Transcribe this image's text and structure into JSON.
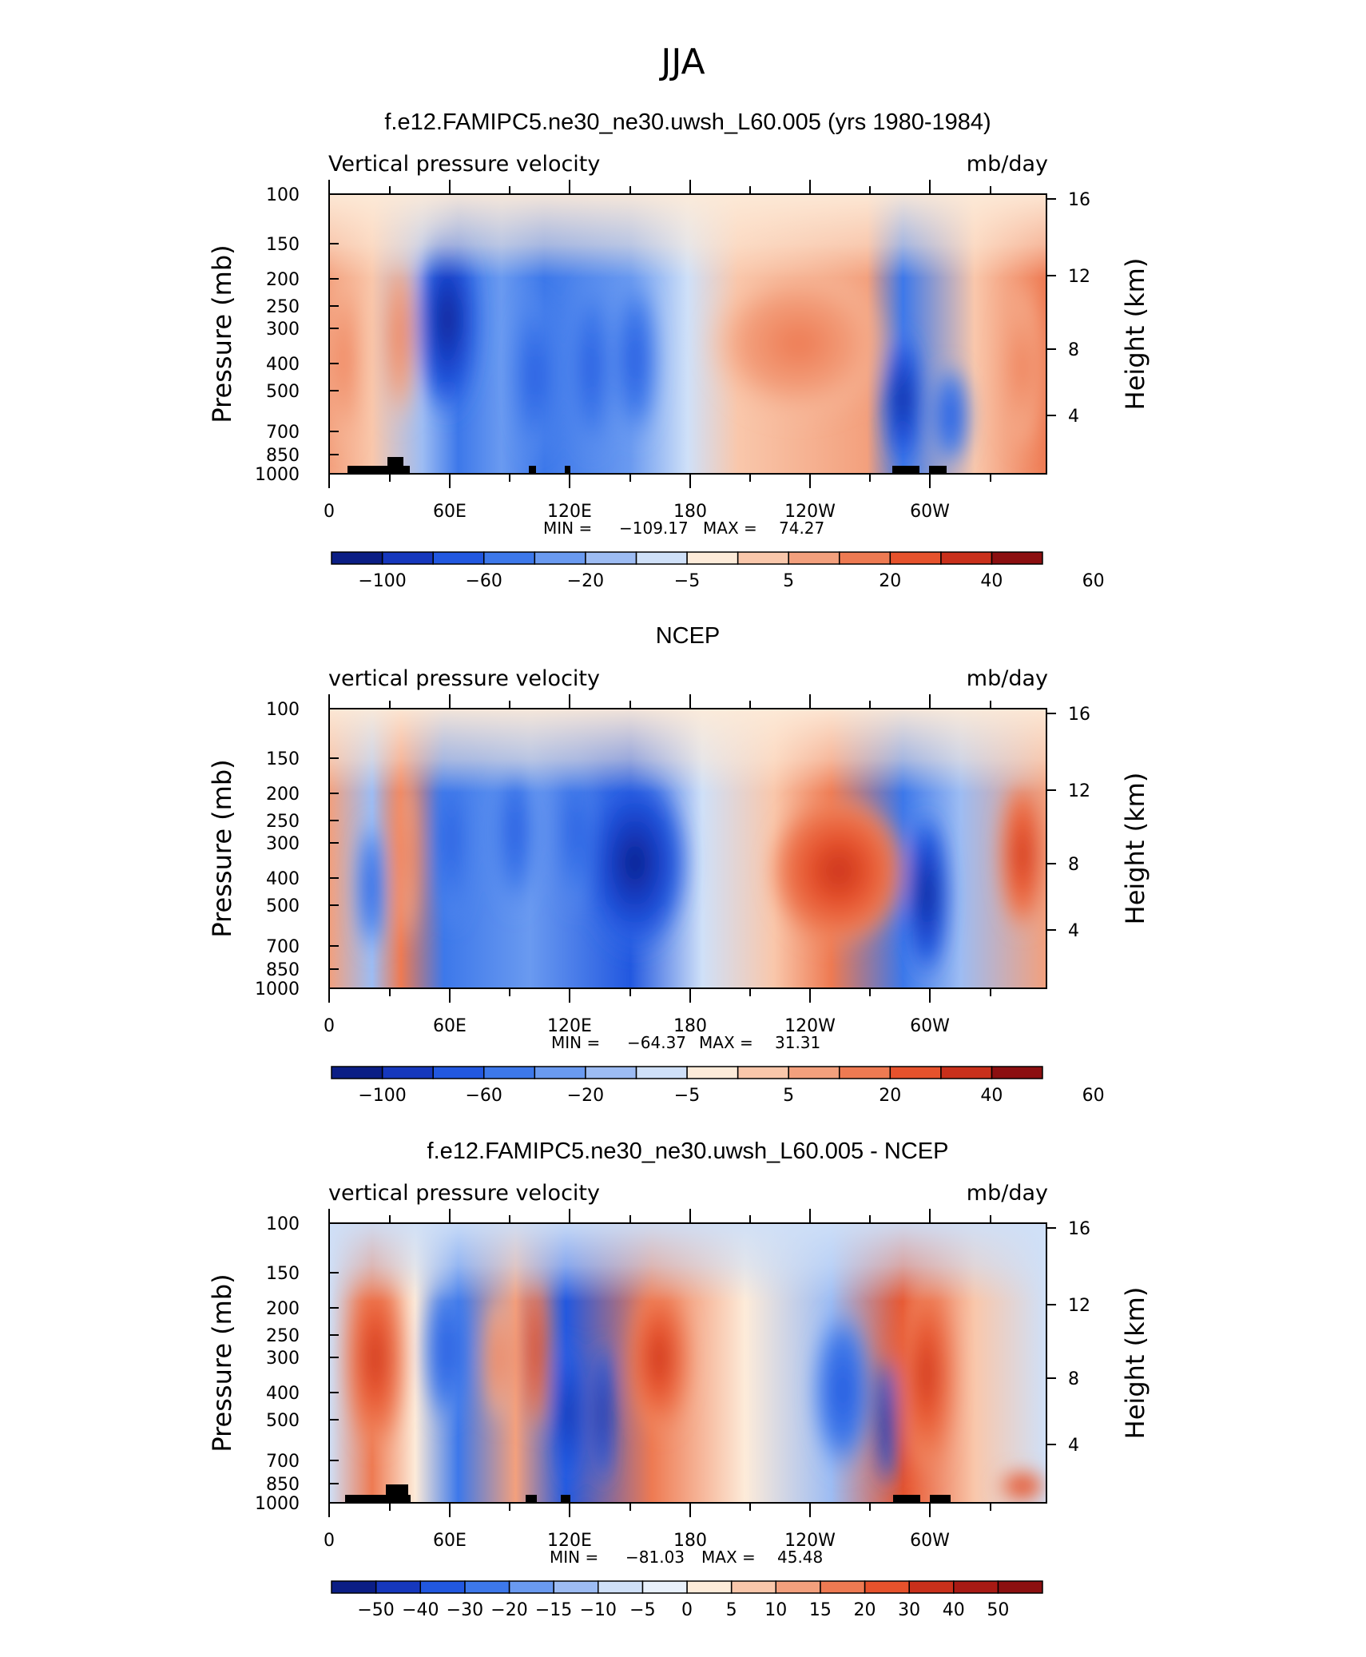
{
  "figure_title": "JJA",
  "chart_data": [
    {
      "type": "heatmap",
      "title": "f.e12.FAMIPC5.ne30_ne30.uwsh_L60.005 (yrs 1980-1984)",
      "left_annotation": "Vertical pressure velocity",
      "right_annotation": "mb/day",
      "xlabel": "",
      "ylabel": "Pressure (mb)",
      "ylabel_right": "Height (km)",
      "x_ticks": [
        "0",
        "60E",
        "120E",
        "180",
        "120W",
        "60W"
      ],
      "y_ticks": [
        "100",
        "150",
        "200",
        "250",
        "300",
        "400",
        "500",
        "700",
        "850",
        "1000"
      ],
      "y_ticks_right": [
        "16",
        "12",
        "8",
        "4"
      ],
      "min_label": "MIN =",
      "min_value": "−109.17",
      "max_label": "MAX =",
      "max_value": "74.27",
      "colorbar_labels": [
        "−100",
        "−60",
        "−20",
        "−5",
        "5",
        "20",
        "40",
        "60"
      ]
    },
    {
      "type": "heatmap",
      "title": "NCEP",
      "left_annotation": "vertical pressure velocity",
      "right_annotation": "mb/day",
      "xlabel": "",
      "ylabel": "Pressure (mb)",
      "ylabel_right": "Height (km)",
      "x_ticks": [
        "0",
        "60E",
        "120E",
        "180",
        "120W",
        "60W"
      ],
      "y_ticks": [
        "100",
        "150",
        "200",
        "250",
        "300",
        "400",
        "500",
        "700",
        "850",
        "1000"
      ],
      "y_ticks_right": [
        "16",
        "12",
        "8",
        "4"
      ],
      "min_label": "MIN =",
      "min_value": "−64.37",
      "max_label": "MAX =",
      "max_value": "31.31",
      "colorbar_labels": [
        "−100",
        "−60",
        "−20",
        "−5",
        "5",
        "20",
        "40",
        "60"
      ]
    },
    {
      "type": "heatmap",
      "title": "f.e12.FAMIPC5.ne30_ne30.uwsh_L60.005 - NCEP",
      "left_annotation": "vertical pressure velocity",
      "right_annotation": "mb/day",
      "xlabel": "",
      "ylabel": "Pressure (mb)",
      "ylabel_right": "Height (km)",
      "x_ticks": [
        "0",
        "60E",
        "120E",
        "180",
        "120W",
        "60W"
      ],
      "y_ticks": [
        "100",
        "150",
        "200",
        "250",
        "300",
        "400",
        "500",
        "700",
        "850",
        "1000"
      ],
      "y_ticks_right": [
        "16",
        "12",
        "8",
        "4"
      ],
      "min_label": "MIN =",
      "min_value": "−81.03",
      "max_label": "MAX =",
      "max_value": "45.48",
      "colorbar_labels": [
        "−50",
        "−40",
        "−30",
        "−20",
        "−15",
        "−10",
        "−5",
        "0",
        "5",
        "10",
        "15",
        "20",
        "30",
        "40",
        "50"
      ]
    }
  ],
  "colorbar_palette": [
    "#0b1e85",
    "#1638bd",
    "#2258e0",
    "#3d78ea",
    "#6a9af0",
    "#9dbcf3",
    "#cfe0f8",
    "#fdebd9",
    "#f9c7ab",
    "#f3a07d",
    "#ee7a52",
    "#e6522c",
    "#c9301b",
    "#8c0f10"
  ]
}
